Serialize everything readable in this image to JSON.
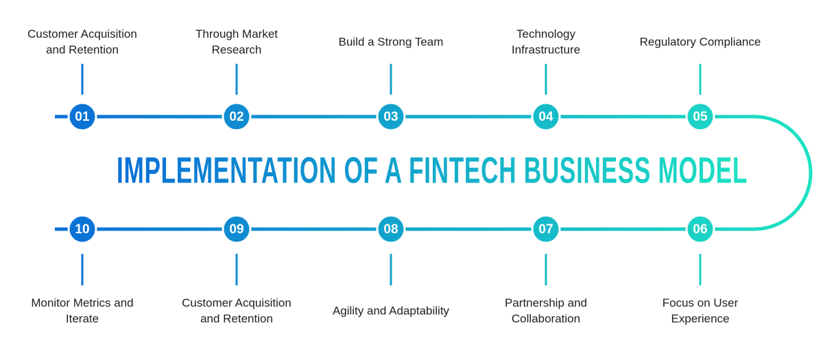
{
  "title": "IMPLEMENTATION OF A FINTECH BUSINESS MODEL",
  "colors": {
    "gradient_start": "#0a6fd6",
    "gradient_end": "#1de3c2",
    "text": "#1f1f1f",
    "background": "#ffffff"
  },
  "steps": [
    {
      "number": "01",
      "label": "Customer Acquisition\nand Retention",
      "row": "top"
    },
    {
      "number": "02",
      "label": "Through Market\nResearch",
      "row": "top"
    },
    {
      "number": "03",
      "label": "Build a Strong Team",
      "row": "top"
    },
    {
      "number": "04",
      "label": "Technology\nInfrastructure",
      "row": "top"
    },
    {
      "number": "05",
      "label": "Regulatory Compliance",
      "row": "top"
    },
    {
      "number": "06",
      "label": "Focus on User\nExperience",
      "row": "bottom"
    },
    {
      "number": "07",
      "label": "Partnership and\nCollaboration",
      "row": "bottom"
    },
    {
      "number": "08",
      "label": "Agility and Adaptability",
      "row": "bottom"
    },
    {
      "number": "09",
      "label": "Customer Acquisition\nand Retention",
      "row": "bottom"
    },
    {
      "number": "10",
      "label": "Monitor Metrics and\nIterate",
      "row": "bottom"
    }
  ]
}
